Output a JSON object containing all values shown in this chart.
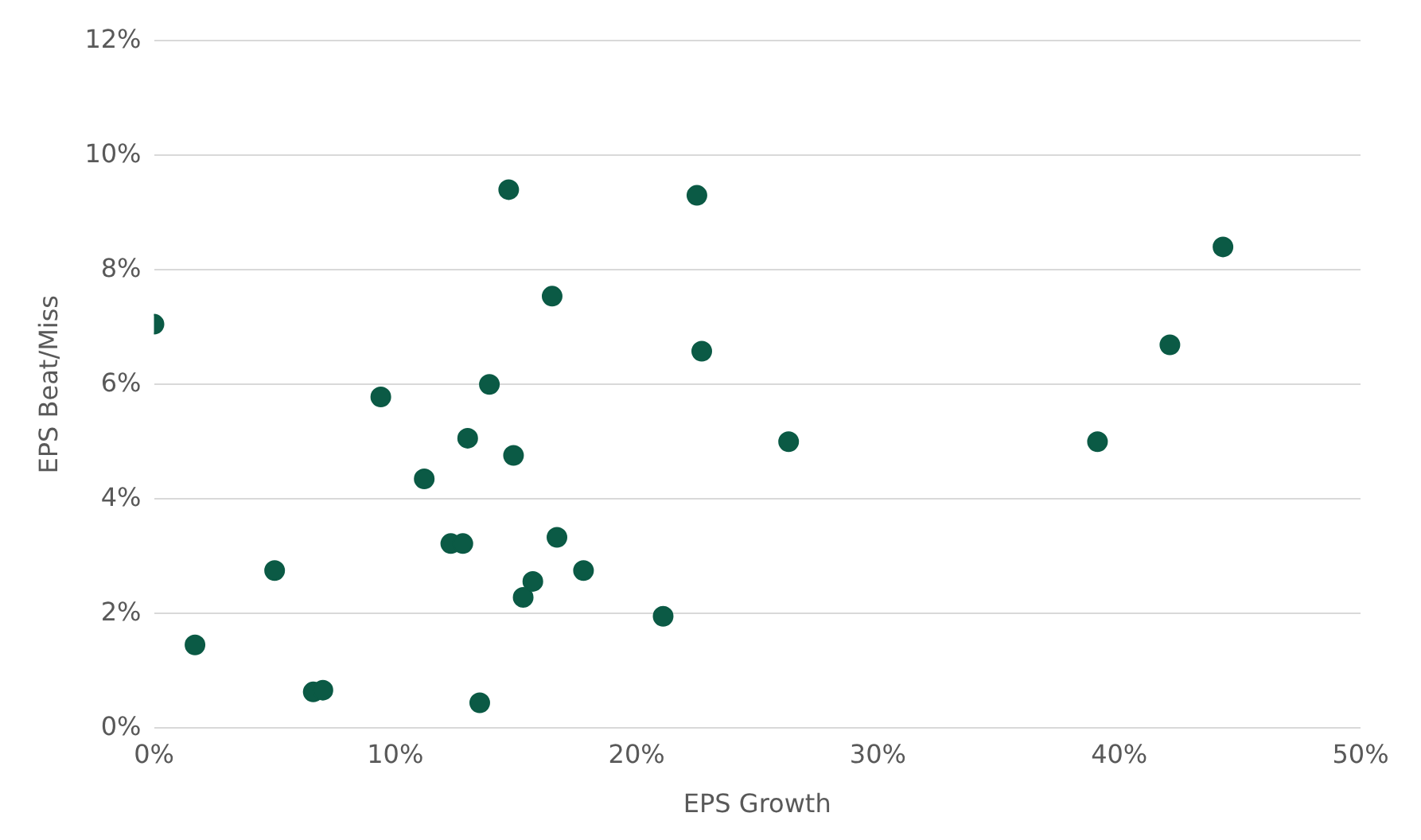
{
  "chart_data": {
    "type": "scatter",
    "xlabel": "EPS Growth",
    "ylabel": "EPS Beat/Miss",
    "color": "#0b5a45",
    "marker": "circle",
    "grid": "y",
    "legend": false,
    "x": [
      0,
      1.7,
      5.0,
      6.6,
      7.0,
      9.4,
      11.2,
      12.3,
      12.8,
      13.0,
      13.5,
      13.9,
      14.7,
      14.9,
      15.3,
      15.7,
      16.5,
      16.7,
      17.8,
      21.1,
      22.5,
      22.7,
      26.3,
      39.1,
      42.1,
      44.3
    ],
    "values": [
      7.05,
      1.45,
      2.75,
      0.63,
      0.66,
      5.78,
      4.35,
      3.22,
      3.22,
      5.06,
      0.44,
      6.0,
      9.4,
      4.76,
      2.28,
      2.56,
      7.54,
      3.33,
      2.75,
      1.95,
      9.3,
      6.58,
      5.0,
      5.0,
      6.69,
      8.4
    ],
    "xlim": [
      0,
      50
    ],
    "xticks": [
      {
        "value": 0,
        "label": "0%"
      },
      {
        "value": 10,
        "label": "10%"
      },
      {
        "value": 20,
        "label": "20%"
      },
      {
        "value": 30,
        "label": "30%"
      },
      {
        "value": 40,
        "label": "40%"
      },
      {
        "value": 50,
        "label": "50%"
      }
    ],
    "ylim": [
      0,
      12
    ],
    "yticks": [
      {
        "value": 0,
        "label": "0%"
      },
      {
        "value": 2,
        "label": "2%"
      },
      {
        "value": 4,
        "label": "4%"
      },
      {
        "value": 6,
        "label": "6%"
      },
      {
        "value": 8,
        "label": "8%"
      },
      {
        "value": 10,
        "label": "10%"
      },
      {
        "value": 12,
        "label": "12%"
      }
    ]
  }
}
